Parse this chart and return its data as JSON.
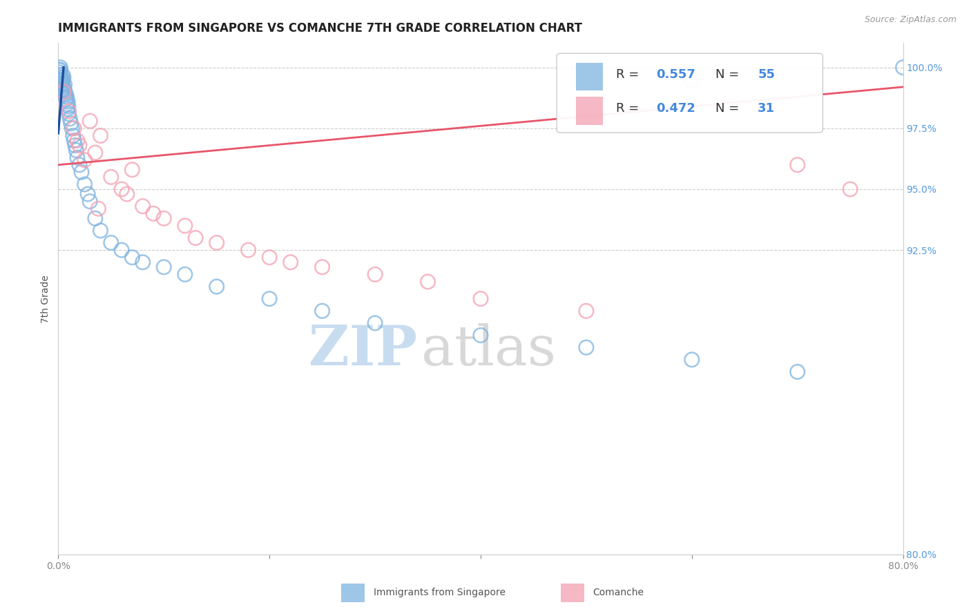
{
  "title": "IMMIGRANTS FROM SINGAPORE VS COMANCHE 7TH GRADE CORRELATION CHART",
  "source_text": "Source: ZipAtlas.com",
  "ylabel": "7th Grade",
  "watermark_zip": "ZIP",
  "watermark_atlas": "atlas",
  "xlim": [
    0.0,
    80.0
  ],
  "ylim": [
    80.0,
    101.0
  ],
  "y_right_ticks": [
    80.0,
    92.5,
    95.0,
    97.5,
    100.0
  ],
  "y_right_labels": [
    "80.0%",
    "92.5%",
    "95.0%",
    "97.5%",
    "100.0%"
  ],
  "legend_r1": "0.557",
  "legend_n1": "55",
  "legend_r2": "0.472",
  "legend_n2": "31",
  "blue_color": "#7EB3E0",
  "pink_color": "#F4A0B0",
  "blue_line_color": "#1E4D9C",
  "pink_line_color": "#E8556A",
  "blue_scatter_x": [
    0.1,
    0.1,
    0.15,
    0.2,
    0.2,
    0.25,
    0.3,
    0.35,
    0.4,
    0.4,
    0.45,
    0.5,
    0.5,
    0.55,
    0.6,
    0.65,
    0.7,
    0.75,
    0.8,
    0.85,
    0.9,
    0.9,
    0.95,
    1.0,
    1.1,
    1.2,
    1.3,
    1.4,
    1.5,
    1.6,
    1.7,
    1.8,
    2.0,
    2.2,
    2.5,
    2.8,
    3.0,
    3.5,
    4.0,
    5.0,
    6.0,
    7.0,
    8.0,
    10.0,
    12.0,
    15.0,
    20.0,
    25.0,
    30.0,
    40.0,
    50.0,
    60.0,
    70.0,
    80.0,
    0.3
  ],
  "blue_scatter_y": [
    99.9,
    99.8,
    99.7,
    99.9,
    100.0,
    99.6,
    99.5,
    99.3,
    99.4,
    99.7,
    99.5,
    99.2,
    99.6,
    99.1,
    99.3,
    99.0,
    98.9,
    98.7,
    98.8,
    98.5,
    98.3,
    98.6,
    98.4,
    98.1,
    97.9,
    97.7,
    97.5,
    97.2,
    97.0,
    96.8,
    96.6,
    96.3,
    96.0,
    95.7,
    95.2,
    94.8,
    94.5,
    93.8,
    93.3,
    92.8,
    92.5,
    92.2,
    92.0,
    91.8,
    91.5,
    91.0,
    90.5,
    90.0,
    89.5,
    89.0,
    88.5,
    88.0,
    87.5,
    100.0,
    99.0
  ],
  "pink_scatter_x": [
    0.5,
    1.0,
    1.5,
    2.0,
    2.5,
    3.0,
    3.5,
    4.0,
    5.0,
    6.0,
    6.5,
    7.0,
    8.0,
    9.0,
    10.0,
    12.0,
    13.0,
    15.0,
    18.0,
    20.0,
    22.0,
    25.0,
    30.0,
    35.0,
    40.0,
    50.0,
    60.0,
    70.0,
    75.0,
    1.8,
    3.8
  ],
  "pink_scatter_y": [
    99.0,
    98.2,
    97.5,
    96.8,
    96.2,
    97.8,
    96.5,
    97.2,
    95.5,
    95.0,
    94.8,
    95.8,
    94.3,
    94.0,
    93.8,
    93.5,
    93.0,
    92.8,
    92.5,
    92.2,
    92.0,
    91.8,
    91.5,
    91.2,
    90.5,
    90.0,
    99.5,
    96.0,
    95.0,
    97.0,
    94.2
  ],
  "background_color": "#FFFFFF",
  "title_fontsize": 12,
  "axis_label_fontsize": 10,
  "tick_fontsize": 10,
  "legend_fontsize": 13,
  "blue_line_x0": 0.0,
  "blue_line_y0": 99.85,
  "blue_line_x1": 0.8,
  "blue_line_y1": 99.95,
  "pink_line_x0": 0.0,
  "pink_line_y0": 96.0,
  "pink_line_x1": 80.0,
  "pink_line_y1": 99.2
}
